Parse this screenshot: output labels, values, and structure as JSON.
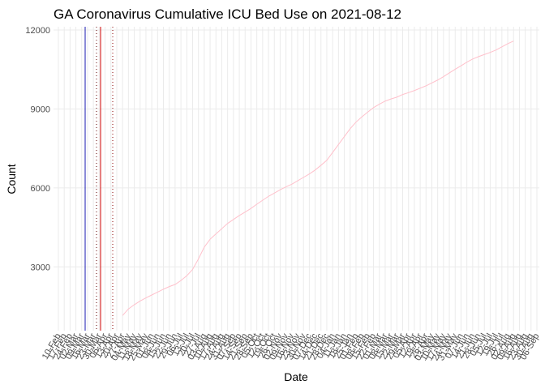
{
  "chart_data": {
    "type": "line",
    "title": "GA Coronavirus Cumulative ICU Bed Use on 2021-08-12",
    "x_label": "Date",
    "y_label": "Count",
    "categories": [
      "10-Feb",
      "17-Feb",
      "24-Feb",
      "02-Mar",
      "09-Mar",
      "16-Mar",
      "23-Mar",
      "30-Mar",
      "06-Apr",
      "13-Apr",
      "20-Apr",
      "27-Apr",
      "04-May",
      "11-May",
      "18-May",
      "25-May",
      "01-Jun",
      "08-Jun",
      "15-Jun",
      "22-Jun",
      "29-Jun",
      "06-Jul",
      "13-Jul",
      "20-Jul",
      "27-Jul",
      "03-Aug",
      "10-Aug",
      "17-Aug",
      "24-Aug",
      "31-Aug",
      "07-Sep",
      "14-Sep",
      "21-Sep",
      "28-Sep",
      "05-Oct",
      "12-Oct",
      "19-Oct",
      "26-Oct",
      "02-Nov",
      "09-Nov",
      "16-Nov",
      "23-Nov",
      "30-Nov",
      "07-Dec",
      "14-Dec",
      "21-Dec",
      "28-Dec",
      "04-Jan",
      "11-Jan",
      "18-Jan",
      "25-Jan",
      "01-Feb",
      "08-Feb",
      "15-Feb",
      "22-Feb",
      "01-Mar",
      "08-Mar",
      "15-Mar",
      "22-Mar",
      "29-Mar",
      "05-Apr",
      "12-Apr",
      "19-Apr",
      "26-Apr",
      "03-May",
      "10-May",
      "17-May",
      "24-May",
      "31-May",
      "07-Jun",
      "14-Jun",
      "21-Jun",
      "28-Jun",
      "05-Jul",
      "12-Jul",
      "19-Jul",
      "26-Jul",
      "02-Aug",
      "09-Aug",
      "16-Aug",
      "23-Aug",
      "30-Aug",
      "06-Sep"
    ],
    "values": [
      null,
      null,
      null,
      null,
      null,
      null,
      null,
      null,
      null,
      null,
      null,
      1150,
      1400,
      1560,
      1700,
      1820,
      1930,
      2040,
      2150,
      2250,
      2330,
      2480,
      2660,
      2900,
      3300,
      3750,
      4050,
      4250,
      4450,
      4650,
      4800,
      4950,
      5080,
      5220,
      5380,
      5530,
      5680,
      5800,
      5930,
      6040,
      6140,
      6270,
      6400,
      6530,
      6680,
      6860,
      7050,
      7350,
      7650,
      7950,
      8250,
      8500,
      8700,
      8880,
      9050,
      9180,
      9300,
      9380,
      9450,
      9550,
      9620,
      9700,
      9790,
      9880,
      9990,
      10100,
      10230,
      10370,
      10510,
      10640,
      10780,
      10900,
      10990,
      11070,
      11150,
      11240,
      11360,
      11480,
      11580,
      null,
      null,
      null,
      null
    ],
    "color": "#ffc0cb",
    "ylim": [
      575,
      12125
    ],
    "yticks": [
      3000,
      6000,
      9000,
      12000
    ],
    "grid": true
  }
}
